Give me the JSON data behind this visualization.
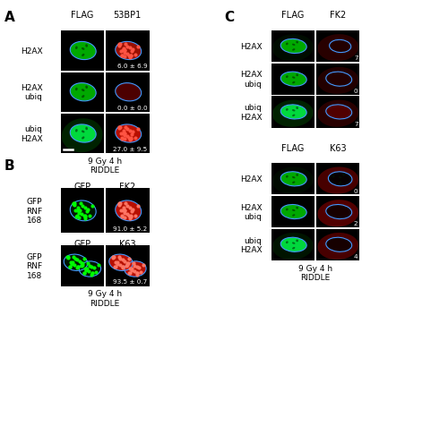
{
  "panel_A": {
    "label": "A",
    "col_headers": [
      "FLAG",
      "53BP1"
    ],
    "row_labels": [
      "H2AX",
      "H2AX\nubiq",
      "ubiq\nH2AX"
    ],
    "annotations": [
      "6.0 ± 6.9",
      "0.0 ± 0.0",
      "27.0 ± 9.5"
    ],
    "bottom_text": [
      "9 Gy 4 h",
      "RIDDLE"
    ]
  },
  "panel_B": {
    "label": "B",
    "row_labels": [
      "GFP\nRNF\n168",
      "GFP\nRNF\n168"
    ],
    "col_headers_row1": [
      "GFP",
      "FK2"
    ],
    "col_headers_row2": [
      "GFP",
      "K63"
    ],
    "annotations": [
      "91.0 ± 5.2",
      "93.5 ± 0.7"
    ],
    "bottom_text": [
      "9 Gy 4 h",
      "RIDDLE"
    ]
  },
  "panel_C": {
    "label": "C",
    "col_headers_top": [
      "FLAG",
      "FK2"
    ],
    "col_headers_bottom": [
      "FLAG",
      "K63"
    ],
    "row_labels": [
      "H2AX",
      "H2AX\nubiq",
      "ubiq\nH2AX"
    ],
    "annotations_top": [
      "7",
      "0",
      "7"
    ],
    "annotations_bottom": [
      "0",
      "2",
      "4"
    ],
    "bottom_text": [
      "9 Gy 4 h",
      "RIDDLE"
    ]
  },
  "outline_color": "#4499ff"
}
